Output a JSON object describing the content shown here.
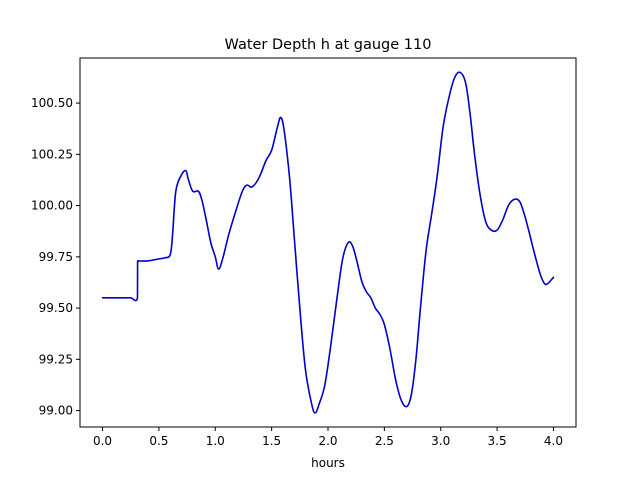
{
  "chart_data": {
    "type": "line",
    "title": "Water Depth h at gauge 110",
    "xlabel": "hours",
    "ylabel": "",
    "xlim": [
      -0.2,
      4.2
    ],
    "ylim": [
      98.92,
      100.72
    ],
    "xticks": [
      0.0,
      0.5,
      1.0,
      1.5,
      2.0,
      2.5,
      3.0,
      3.5,
      4.0
    ],
    "xtick_labels": [
      "0.0",
      "0.5",
      "1.0",
      "1.5",
      "2.0",
      "2.5",
      "3.0",
      "3.5",
      "4.0"
    ],
    "yticks": [
      99.0,
      99.25,
      99.5,
      99.75,
      100.0,
      100.25,
      100.5
    ],
    "ytick_labels": [
      "99.00",
      "99.25",
      "99.50",
      "99.75",
      "100.00",
      "100.25",
      "100.50"
    ],
    "grid": false,
    "series": [
      {
        "color": "#0000cc",
        "x": [
          0.0,
          0.05,
          0.1,
          0.15,
          0.2,
          0.25,
          0.31,
          0.311,
          0.32,
          0.4,
          0.5,
          0.55,
          0.6,
          0.62,
          0.65,
          0.7,
          0.74,
          0.76,
          0.8,
          0.85,
          0.88,
          0.92,
          0.96,
          1.0,
          1.03,
          1.07,
          1.12,
          1.18,
          1.24,
          1.28,
          1.32,
          1.36,
          1.4,
          1.45,
          1.5,
          1.55,
          1.58,
          1.61,
          1.66,
          1.7,
          1.75,
          1.8,
          1.86,
          1.89,
          1.92,
          1.97,
          2.02,
          2.08,
          2.13,
          2.18,
          2.22,
          2.26,
          2.3,
          2.34,
          2.38,
          2.42,
          2.46,
          2.5,
          2.55,
          2.6,
          2.65,
          2.7,
          2.74,
          2.78,
          2.82,
          2.87,
          2.92,
          2.97,
          3.02,
          3.07,
          3.12,
          3.17,
          3.22,
          3.26,
          3.3,
          3.35,
          3.4,
          3.45,
          3.5,
          3.55,
          3.6,
          3.65,
          3.7,
          3.74,
          3.78,
          3.83,
          3.88,
          3.92,
          3.95,
          4.0
        ],
        "y": [
          99.55,
          99.55,
          99.55,
          99.55,
          99.55,
          99.55,
          99.55,
          99.73,
          99.73,
          99.73,
          99.74,
          99.745,
          99.76,
          99.85,
          100.07,
          100.15,
          100.17,
          100.13,
          100.07,
          100.07,
          100.03,
          99.93,
          99.82,
          99.75,
          99.69,
          99.75,
          99.86,
          99.97,
          100.07,
          100.1,
          100.09,
          100.11,
          100.15,
          100.22,
          100.27,
          100.38,
          100.43,
          100.37,
          100.13,
          99.85,
          99.5,
          99.2,
          99.02,
          98.99,
          99.03,
          99.12,
          99.3,
          99.55,
          99.74,
          99.82,
          99.8,
          99.72,
          99.63,
          99.58,
          99.55,
          99.5,
          99.47,
          99.42,
          99.3,
          99.15,
          99.05,
          99.02,
          99.08,
          99.25,
          99.5,
          99.78,
          99.96,
          100.15,
          100.38,
          100.52,
          100.62,
          100.65,
          100.6,
          100.45,
          100.25,
          100.05,
          99.92,
          99.88,
          99.88,
          99.93,
          100.0,
          100.03,
          100.02,
          99.96,
          99.88,
          99.77,
          99.67,
          99.62,
          99.62,
          99.65
        ]
      }
    ]
  }
}
